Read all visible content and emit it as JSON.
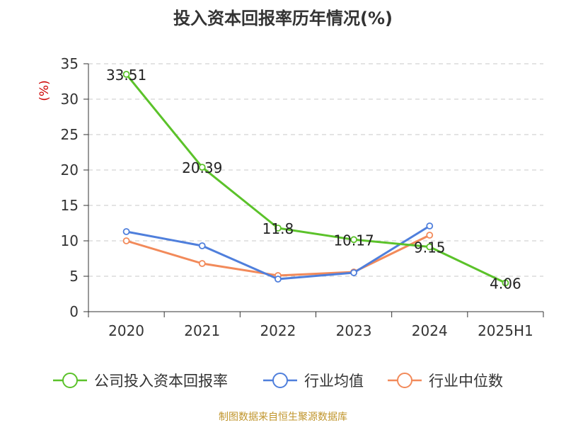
{
  "title": "投入资本回报率历年情况(%)",
  "source": "制图数据来自恒生聚源数据库",
  "chart_data": {
    "type": "line",
    "title": "投入资本回报率历年情况(%)",
    "ylabel": "(%)",
    "xlabel": "",
    "categories": [
      "2020",
      "2021",
      "2022",
      "2023",
      "2024",
      "2025H1"
    ],
    "ylim": [
      0,
      35
    ],
    "yticks": [
      0,
      5,
      10,
      15,
      20,
      25,
      30,
      35
    ],
    "grid": "horizontal dashed",
    "legend_position": "bottom",
    "series": [
      {
        "name": "公司投入资本回报率",
        "color": "#5bc22a",
        "values": [
          33.51,
          20.39,
          11.8,
          10.17,
          9.15,
          4.06
        ],
        "labels": true
      },
      {
        "name": "行业均值",
        "color": "#4f7fdc",
        "values": [
          11.3,
          9.3,
          4.6,
          5.5,
          12.1,
          null
        ],
        "labels": false
      },
      {
        "name": "行业中位数",
        "color": "#f28a5a",
        "values": [
          10.0,
          6.8,
          5.1,
          5.6,
          10.8,
          null
        ],
        "labels": false
      }
    ]
  }
}
